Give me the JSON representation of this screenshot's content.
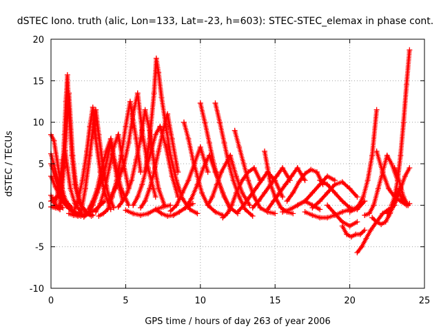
{
  "chart_data": {
    "type": "scatter",
    "title": "dSTEC Iono. truth (alic, Lon=133, Lat=-23, h=603): STEC-STEC_elemax in phase cont.",
    "xlabel": "GPS time / hours of day 263 of year 2006",
    "ylabel": "dSTEC  / TECUs",
    "xlim": [
      0,
      25
    ],
    "ylim": [
      -10,
      20
    ],
    "x_ticks": [
      0,
      5,
      10,
      15,
      20,
      25
    ],
    "y_ticks": [
      -10,
      -5,
      0,
      5,
      10,
      15,
      20
    ],
    "grid": true,
    "legend": "none",
    "marker": "+",
    "series_color": "#ff0000",
    "series": [
      {
        "x": [
          0.0,
          0.2,
          0.4,
          0.6,
          0.8,
          1.0,
          1.2,
          1.4,
          1.6,
          1.8,
          2.0
        ],
        "y": [
          8.5,
          7.8,
          5.5,
          3.2,
          1.6,
          0.5,
          -0.2,
          -0.7,
          -1.0,
          -1.2,
          -1.3
        ]
      },
      {
        "x": [
          0.0,
          0.2,
          0.5,
          0.8,
          1.1,
          1.4,
          1.7,
          2.0
        ],
        "y": [
          6.2,
          4.8,
          2.8,
          1.2,
          0.0,
          -0.7,
          -1.0,
          -1.2
        ]
      },
      {
        "x": [
          0.0,
          0.3,
          0.6,
          0.9,
          1.2,
          1.5
        ],
        "y": [
          5.0,
          3.2,
          1.5,
          0.3,
          -0.4,
          -0.8
        ]
      },
      {
        "x": [
          0.0,
          0.2,
          0.4,
          0.6,
          0.8
        ],
        "y": [
          1.2,
          0.3,
          -0.1,
          -0.2,
          -0.3
        ]
      },
      {
        "x": [
          0.0,
          0.3,
          0.6
        ],
        "y": [
          -0.2,
          -0.3,
          -0.5
        ]
      },
      {
        "x": [
          0.0,
          0.3,
          0.6,
          1.0,
          1.4
        ],
        "y": [
          0.5,
          0.9,
          1.3,
          0.5,
          -0.3
        ]
      },
      {
        "x": [
          0.0,
          0.3,
          0.6,
          0.9,
          1.2,
          1.6,
          2.0
        ],
        "y": [
          3.5,
          2.2,
          1.0,
          0.2,
          -0.3,
          -0.8,
          -1.1
        ]
      },
      {
        "x": [
          0.6,
          0.75,
          0.9,
          1.05,
          1.2,
          1.45,
          1.7,
          2.0,
          2.4,
          2.8
        ],
        "y": [
          -0.5,
          2.0,
          5.5,
          9.5,
          13.5,
          6.0,
          2.0,
          0.0,
          -0.8,
          -1.2
        ]
      },
      {
        "x": [
          0.6,
          0.7,
          0.8,
          0.9,
          1.0,
          1.1,
          1.2,
          1.4,
          1.6,
          1.9,
          2.3,
          2.7
        ],
        "y": [
          0.0,
          2.0,
          5.0,
          8.5,
          12.5,
          15.7,
          11.5,
          6.0,
          2.5,
          0.3,
          -0.8,
          -1.3
        ]
      },
      {
        "x": [
          0.2,
          0.4,
          0.6,
          0.8,
          0.95,
          1.1,
          1.3,
          1.6,
          2.0
        ],
        "y": [
          -0.2,
          1.0,
          3.0,
          5.5,
          6.6,
          4.5,
          2.0,
          0.2,
          -0.8
        ]
      },
      {
        "x": [
          1.2,
          1.5,
          1.8,
          2.1,
          2.4,
          2.7,
          3.0,
          3.3,
          3.6
        ],
        "y": [
          -1.0,
          -1.2,
          -1.3,
          -1.2,
          -1.0,
          -0.8,
          -0.5,
          0.0,
          0.5
        ]
      },
      {
        "x": [
          1.5,
          1.8,
          2.1,
          2.4,
          2.6,
          2.8,
          3.0,
          3.3,
          3.6,
          4.0
        ],
        "y": [
          -0.8,
          0.5,
          3.0,
          6.5,
          9.5,
          11.8,
          8.0,
          4.0,
          1.5,
          -0.5
        ]
      },
      {
        "x": [
          2.0,
          2.3,
          2.6,
          2.8,
          3.0,
          3.2,
          3.5,
          3.8,
          4.2
        ],
        "y": [
          -1.0,
          2.0,
          6.0,
          9.0,
          11.5,
          8.5,
          4.5,
          1.5,
          -0.3
        ]
      },
      {
        "x": [
          2.2,
          2.5,
          2.8,
          3.1,
          3.4,
          3.7,
          4.0,
          4.4,
          4.8
        ],
        "y": [
          -1.4,
          -1.0,
          0.0,
          1.5,
          3.0,
          5.0,
          7.5,
          3.5,
          0.5
        ]
      },
      {
        "x": [
          2.5,
          2.8,
          3.1,
          3.4,
          3.7,
          4.0,
          4.3,
          4.7,
          5.2
        ],
        "y": [
          -0.5,
          0.5,
          2.0,
          4.5,
          6.5,
          8.0,
          5.0,
          2.0,
          0.0
        ]
      },
      {
        "x": [
          3.0,
          3.3,
          3.6,
          3.9,
          4.2,
          4.5,
          4.8,
          5.2
        ],
        "y": [
          -0.8,
          0.2,
          2.0,
          4.5,
          7.0,
          8.5,
          5.5,
          2.0
        ]
      },
      {
        "x": [
          3.2,
          3.5,
          3.8,
          4.1,
          4.4,
          4.7,
          5.0,
          5.3,
          5.7,
          6.0
        ],
        "y": [
          -1.3,
          -1.0,
          -0.5,
          1.0,
          3.0,
          6.0,
          9.5,
          12.5,
          8.0,
          4.0
        ]
      },
      {
        "x": [
          3.8,
          4.0,
          4.3,
          4.6,
          4.9,
          5.2,
          5.5,
          5.8,
          6.1,
          6.5,
          7.0
        ],
        "y": [
          0.5,
          1.0,
          2.0,
          3.5,
          5.0,
          7.5,
          11.0,
          13.5,
          9.0,
          4.5,
          1.0
        ]
      },
      {
        "x": [
          4.5,
          4.8,
          5.1,
          5.4,
          5.7,
          6.0,
          6.3,
          6.6,
          6.9,
          7.2,
          7.6
        ],
        "y": [
          -0.2,
          0.5,
          1.5,
          3.0,
          5.5,
          8.0,
          11.5,
          9.0,
          5.0,
          2.0,
          0.0
        ]
      },
      {
        "x": [
          5.0,
          5.5,
          6.0,
          6.5,
          7.0,
          7.5,
          8.0
        ],
        "y": [
          -0.6,
          -1.0,
          -1.2,
          -1.0,
          -0.5,
          -0.2,
          0.0
        ]
      },
      {
        "x": [
          5.5,
          5.8,
          6.1,
          6.4,
          6.7,
          7.0,
          7.3,
          7.7,
          8.1,
          8.5
        ],
        "y": [
          0.0,
          1.0,
          2.5,
          4.5,
          6.5,
          8.5,
          9.5,
          7.0,
          3.5,
          1.0
        ]
      },
      {
        "x": [
          6.0,
          6.3,
          6.6,
          6.9,
          7.2,
          7.5,
          7.8,
          8.1,
          8.5
        ],
        "y": [
          -0.3,
          0.5,
          2.0,
          4.0,
          6.5,
          9.0,
          11.0,
          8.0,
          4.0
        ]
      },
      {
        "x": [
          6.3,
          6.6,
          6.9,
          7.05,
          7.2,
          7.4,
          7.7,
          8.0,
          8.4,
          8.8,
          9.3,
          9.8
        ],
        "y": [
          4.0,
          8.0,
          13.5,
          17.7,
          16.0,
          13.0,
          9.5,
          6.0,
          3.0,
          0.8,
          -0.5,
          -1.0
        ]
      },
      {
        "x": [
          7.0,
          7.4,
          7.8,
          8.2,
          8.6,
          9.0,
          9.5
        ],
        "y": [
          -0.5,
          -1.0,
          -1.3,
          -1.2,
          -0.8,
          -0.3,
          0.2
        ]
      },
      {
        "x": [
          8.0,
          8.4,
          8.8,
          9.2,
          9.6,
          10.0,
          10.5
        ],
        "y": [
          -0.7,
          0.0,
          1.5,
          3.0,
          5.0,
          7.0,
          4.0
        ]
      },
      {
        "x": [
          8.9,
          9.2,
          9.5,
          9.8,
          10.1,
          10.5,
          11.0,
          11.5
        ],
        "y": [
          10.0,
          8.0,
          5.5,
          3.5,
          1.5,
          0.0,
          -0.8,
          -1.2
        ]
      },
      {
        "x": [
          9.0,
          9.4,
          9.8,
          10.2,
          10.6,
          11.0,
          11.5,
          12.0
        ],
        "y": [
          -0.3,
          0.8,
          2.5,
          4.5,
          6.0,
          4.0,
          1.5,
          -0.5
        ]
      },
      {
        "x": [
          10.0,
          10.3,
          10.6,
          10.9,
          11.2,
          11.6,
          12.0,
          12.5
        ],
        "y": [
          12.3,
          10.0,
          7.5,
          5.0,
          3.0,
          1.0,
          -0.3,
          -1.0
        ]
      },
      {
        "x": [
          10.5,
          10.8,
          11.1,
          11.4,
          11.7,
          12.0,
          12.4,
          12.8,
          13.3
        ],
        "y": [
          0.0,
          1.0,
          2.5,
          4.0,
          5.0,
          6.0,
          3.5,
          1.5,
          0.0
        ]
      },
      {
        "x": [
          11.0,
          11.3,
          11.6,
          11.9,
          12.2,
          12.6,
          13.0,
          13.5
        ],
        "y": [
          12.3,
          10.0,
          7.5,
          5.0,
          3.0,
          1.0,
          -0.5,
          -1.3
        ]
      },
      {
        "x": [
          11.5,
          11.8,
          12.1,
          12.4,
          12.8,
          13.2,
          13.6,
          14.0
        ],
        "y": [
          -1.5,
          -1.0,
          0.0,
          1.5,
          3.0,
          4.0,
          4.5,
          3.0
        ]
      },
      {
        "x": [
          12.3,
          12.6,
          12.9,
          13.2,
          13.6,
          14.0,
          14.5,
          15.0
        ],
        "y": [
          9.0,
          7.0,
          5.0,
          3.0,
          1.0,
          -0.3,
          -0.8,
          -1.0
        ]
      },
      {
        "x": [
          12.5,
          12.9,
          13.3,
          13.7,
          14.1,
          14.5,
          15.0,
          15.5
        ],
        "y": [
          -0.8,
          0.0,
          1.0,
          2.0,
          3.0,
          4.0,
          3.0,
          1.0
        ]
      },
      {
        "x": [
          13.5,
          13.9,
          14.3,
          14.7,
          15.1,
          15.5,
          16.0
        ],
        "y": [
          -0.3,
          0.5,
          1.5,
          2.5,
          3.5,
          4.5,
          3.0
        ]
      },
      {
        "x": [
          14.3,
          14.5,
          14.7,
          15.0,
          15.4,
          15.8,
          16.2
        ],
        "y": [
          6.5,
          4.5,
          2.5,
          1.0,
          -0.3,
          -0.8,
          -1.0
        ]
      },
      {
        "x": [
          14.5,
          14.9,
          15.3,
          15.7,
          16.1,
          16.5,
          17.0
        ],
        "y": [
          -0.5,
          0.5,
          1.5,
          2.5,
          3.5,
          4.5,
          3.0
        ]
      },
      {
        "x": [
          15.5,
          16.0,
          16.5,
          17.0,
          17.5,
          18.0
        ],
        "y": [
          -0.8,
          -0.5,
          0.0,
          0.5,
          0.0,
          -0.5
        ]
      },
      {
        "x": [
          15.8,
          16.2,
          16.6,
          17.0,
          17.4,
          17.8,
          18.2
        ],
        "y": [
          0.5,
          1.5,
          2.8,
          3.8,
          4.3,
          4.0,
          2.5
        ]
      },
      {
        "x": [
          16.5,
          17.0,
          17.5,
          18.0,
          18.5,
          19.0
        ],
        "y": [
          0.0,
          0.5,
          1.5,
          2.5,
          3.5,
          3.0
        ]
      },
      {
        "x": [
          17.0,
          17.5,
          18.0,
          18.5,
          19.0,
          19.5,
          20.0
        ],
        "y": [
          -0.8,
          -1.2,
          -1.5,
          -1.5,
          -1.2,
          -0.8,
          -0.5
        ]
      },
      {
        "x": [
          17.5,
          18.0,
          18.5,
          19.0,
          19.5,
          20.0,
          20.5
        ],
        "y": [
          -0.3,
          0.5,
          1.5,
          2.5,
          2.8,
          2.0,
          1.0
        ]
      },
      {
        "x": [
          18.0,
          18.5,
          19.0,
          19.5,
          20.0,
          20.5,
          21.0
        ],
        "y": [
          3.0,
          2.5,
          1.5,
          0.5,
          -0.3,
          -0.5,
          0.5
        ]
      },
      {
        "x": [
          18.5,
          19.0,
          19.5,
          20.0,
          20.5
        ],
        "y": [
          0.0,
          -1.0,
          -2.0,
          -2.5,
          -2.0
        ]
      },
      {
        "x": [
          19.5,
          19.8,
          20.1,
          20.4,
          20.7,
          21.0
        ],
        "y": [
          -2.5,
          -3.5,
          -3.8,
          -3.5,
          -3.5,
          -3.0
        ]
      },
      {
        "x": [
          20.0,
          20.3,
          20.6,
          20.9,
          21.2,
          21.5,
          21.8
        ],
        "y": [
          -0.8,
          -0.5,
          0.0,
          1.0,
          3.0,
          6.0,
          11.5
        ]
      },
      {
        "x": [
          20.5,
          20.8,
          21.1,
          21.4,
          21.8,
          22.2,
          22.6,
          23.0
        ],
        "y": [
          -5.7,
          -5.0,
          -4.0,
          -3.0,
          -2.0,
          -1.0,
          -0.5,
          0.0
        ]
      },
      {
        "x": [
          21.0,
          21.3,
          21.6,
          21.9,
          22.2,
          22.5,
          22.8,
          23.2
        ],
        "y": [
          -1.2,
          -1.0,
          0.0,
          2.0,
          4.0,
          6.0,
          5.0,
          3.0
        ]
      },
      {
        "x": [
          21.5,
          21.8,
          22.1,
          22.4,
          22.7,
          23.0,
          23.3
        ],
        "y": [
          -1.5,
          -2.0,
          -2.3,
          -2.0,
          -1.0,
          0.5,
          2.0
        ]
      },
      {
        "x": [
          21.8,
          22.2,
          22.6,
          23.0,
          23.4,
          23.8
        ],
        "y": [
          6.5,
          4.0,
          2.0,
          1.0,
          0.5,
          0.0
        ]
      },
      {
        "x": [
          22.5,
          22.8,
          23.1,
          23.4,
          23.7,
          24.0
        ],
        "y": [
          -1.0,
          -0.5,
          0.5,
          2.0,
          3.5,
          4.5
        ]
      },
      {
        "x": [
          22.8,
          23.0,
          23.2,
          23.4,
          23.6,
          23.8,
          24.0
        ],
        "y": [
          0.0,
          1.0,
          3.0,
          6.0,
          10.0,
          14.5,
          18.7
        ]
      },
      {
        "x": [
          23.0,
          23.3,
          23.6,
          23.9
        ],
        "y": [
          4.5,
          3.0,
          1.0,
          0.0
        ]
      },
      {
        "x": [
          23.3,
          23.6,
          23.9,
          24.0
        ],
        "y": [
          1.5,
          0.5,
          0.0,
          0.2
        ]
      }
    ]
  }
}
